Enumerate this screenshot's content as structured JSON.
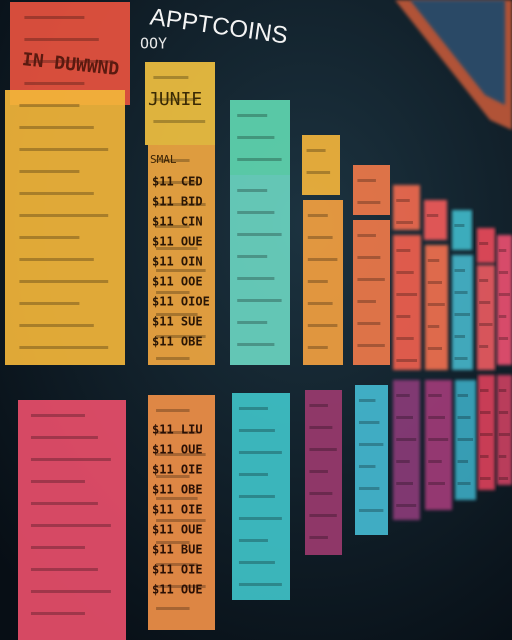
{
  "header": {
    "title": "APPTCOINS",
    "subtitle": "OOY"
  },
  "cards": [
    {
      "label": "IN DUWWND"
    },
    {
      "label": "JUNIE"
    },
    {
      "label": "SMAL",
      "lines": [
        "$11 CED",
        "$11 BID",
        "$11 CIN",
        "$11 OUE",
        "$11 OIN",
        "$11 OOE",
        "$11 OIOE",
        "$11 SUE",
        "$11 OBE"
      ]
    },
    {
      "lines": [
        "$11 LIU",
        "$11 OUE",
        "$11 OIE",
        "$11 OBE",
        "$11 OIE",
        "$11 OUE",
        "$11 BUE",
        "$11 OIE",
        "$11 OUE"
      ]
    }
  ]
}
